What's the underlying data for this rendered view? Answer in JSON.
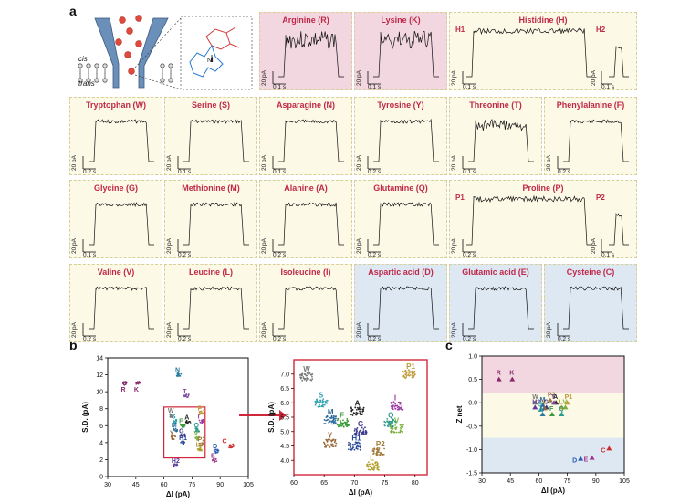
{
  "panels": {
    "a": "a",
    "b": "b",
    "c": "c"
  },
  "schematic": {
    "cis": "cis",
    "trans": "trans",
    "ni": "Ni"
  },
  "tiles": [
    {
      "name": "Arginine (R)",
      "bg": "#f2d7e0",
      "scale_y": "20 pA",
      "scale_x": "0.1 s",
      "sub": []
    },
    {
      "name": "Lysine (K)",
      "bg": "#f2d7e0",
      "scale_y": "20 pA",
      "scale_x": "0.1 s",
      "sub": []
    },
    {
      "name": "Histidine (H)",
      "bg": "#fcf9e6",
      "scale_y": "20 pA",
      "scale_x": "0.1 s",
      "sub": [
        "H1",
        "H2"
      ],
      "scale_y2": "20 pA",
      "scale_x2": "0.1 s"
    },
    {
      "name": "Tryptophan (W)",
      "bg": "#fcf9e6",
      "scale_y": "20 pA",
      "scale_x": "0.2 s",
      "sub": []
    },
    {
      "name": "Serine (S)",
      "bg": "#fcf9e6",
      "scale_y": "20 pA",
      "scale_x": "0.1 s",
      "sub": []
    },
    {
      "name": "Asparagine (N)",
      "bg": "#fcf9e6",
      "scale_y": "20 pA",
      "scale_x": "0.1 s",
      "sub": []
    },
    {
      "name": "Tyrosine (Y)",
      "bg": "#fcf9e6",
      "scale_y": "20 pA",
      "scale_x": "0.2 s",
      "sub": []
    },
    {
      "name": "Threonine (T)",
      "bg": "#fcf9e6",
      "scale_y": "20 pA",
      "scale_x": "0.1 s",
      "sub": []
    },
    {
      "name": "Phenylalanine (F)",
      "bg": "#fcf9e6",
      "scale_y": "20 pA",
      "scale_x": "0.2 s",
      "sub": []
    },
    {
      "name": "Glycine (G)",
      "bg": "#fcf9e6",
      "scale_y": "20 pA",
      "scale_x": "0.1 s",
      "sub": []
    },
    {
      "name": "Methionine (M)",
      "bg": "#fcf9e6",
      "scale_y": "20 pA",
      "scale_x": "0.2 s",
      "sub": []
    },
    {
      "name": "Alanine (A)",
      "bg": "#fcf9e6",
      "scale_y": "20 pA",
      "scale_x": "0.2 s",
      "sub": []
    },
    {
      "name": "Glutamine (Q)",
      "bg": "#fcf9e6",
      "scale_y": "20 pA",
      "scale_x": "0.2 s",
      "sub": []
    },
    {
      "name": "Proline (P)",
      "bg": "#fcf9e6",
      "scale_y": "20 pA",
      "scale_x": "0.2 s",
      "sub": [
        "P1",
        "P2"
      ],
      "scale_y2": "20 pA",
      "scale_x2": "0.1 s"
    },
    {
      "name": "Valine (V)",
      "bg": "#fcf9e6",
      "scale_y": "20 pA",
      "scale_x": "0.2 s",
      "sub": []
    },
    {
      "name": "Leucine (L)",
      "bg": "#fcf9e6",
      "scale_y": "20 pA",
      "scale_x": "0.2 s",
      "sub": []
    },
    {
      "name": "Isoleucine (I)",
      "bg": "#fcf9e6",
      "scale_y": "20 pA",
      "scale_x": "0.2 s",
      "sub": []
    },
    {
      "name": "Aspartic acid (D)",
      "bg": "#dde8f3",
      "scale_y": "20 pA",
      "scale_x": "0.2 s",
      "sub": []
    },
    {
      "name": "Glutamic acid (E)",
      "bg": "#dde8f3",
      "scale_y": "20 pA",
      "scale_x": "0.2 s",
      "sub": []
    },
    {
      "name": "Cysteine (C)",
      "bg": "#dde8f3",
      "scale_y": "20 pA",
      "scale_x": "0.2 s",
      "sub": []
    }
  ],
  "chart_data": [
    {
      "type": "scatter",
      "panel": "b-left",
      "xlabel": "ΔI (pA)",
      "ylabel": "S.D. (pA)",
      "xlim": [
        30,
        105
      ],
      "ylim": [
        0,
        14
      ],
      "xticks": [
        "30",
        "45",
        "60",
        "75",
        "90",
        "105"
      ],
      "yticks": [
        "0",
        "2",
        "4",
        "6",
        "8",
        "10",
        "12",
        "14"
      ],
      "clusters": [
        {
          "label": "R",
          "x": 39,
          "y": 11.0,
          "color": "#8a2a6a"
        },
        {
          "label": "K",
          "x": 46,
          "y": 11.0,
          "color": "#8a2a6a"
        },
        {
          "label": "N",
          "x": 68,
          "y": 12.0,
          "color": "#2a7a9a"
        },
        {
          "label": "T",
          "x": 72,
          "y": 9.5,
          "color": "#7a4aa0"
        },
        {
          "label": "W",
          "x": 64,
          "y": 7.2,
          "color": "#7a7a7a"
        },
        {
          "label": "S",
          "x": 66,
          "y": 6.5,
          "color": "#2aa0b0"
        },
        {
          "label": "P1",
          "x": 80,
          "y": 7.5,
          "color": "#c09a3a"
        },
        {
          "label": "I",
          "x": 80,
          "y": 6.5,
          "color": "#9a3aa0"
        },
        {
          "label": "A",
          "x": 73,
          "y": 6.4,
          "color": "#222222"
        },
        {
          "label": "F",
          "x": 70,
          "y": 6.0,
          "color": "#3a9a3a"
        },
        {
          "label": "M",
          "x": 66,
          "y": 5.5,
          "color": "#2a6a9a"
        },
        {
          "label": "Q",
          "x": 78,
          "y": 5.5,
          "color": "#2a9a8a"
        },
        {
          "label": "Y",
          "x": 65,
          "y": 4.6,
          "color": "#9a6a3a"
        },
        {
          "label": "G",
          "x": 70,
          "y": 4.8,
          "color": "#3a3a8a"
        },
        {
          "label": "V",
          "x": 78,
          "y": 4.5,
          "color": "#7ab03a"
        },
        {
          "label": "H1",
          "x": 70,
          "y": 4.0,
          "color": "#2a4a9a"
        },
        {
          "label": "P2",
          "x": 80,
          "y": 3.8,
          "color": "#a07a3a"
        },
        {
          "label": "L",
          "x": 79,
          "y": 3.2,
          "color": "#b0a02a"
        },
        {
          "label": "D",
          "x": 88,
          "y": 3.0,
          "color": "#2a5ab0"
        },
        {
          "label": "E",
          "x": 87,
          "y": 1.9,
          "color": "#a03a8a"
        },
        {
          "label": "C",
          "x": 96,
          "y": 3.6,
          "color": "#d02a2a"
        },
        {
          "label": "H2",
          "x": 66,
          "y": 1.3,
          "color": "#5a3a9a"
        }
      ]
    },
    {
      "type": "scatter",
      "panel": "b-right",
      "xlabel": "ΔI (pA)",
      "ylabel": "S.D. (pA)",
      "xlim": [
        60,
        82
      ],
      "ylim": [
        3.5,
        7.5
      ],
      "xticks": [
        "60",
        "65",
        "70",
        "75",
        "80"
      ],
      "yticks": [
        "4.0",
        "4.5",
        "5.0",
        "5.5",
        "6.0",
        "6.5",
        "7.0"
      ],
      "clusters": [
        {
          "label": "W",
          "x": 62,
          "y": 6.9,
          "color": "#7a7a7a"
        },
        {
          "label": "P1",
          "x": 79,
          "y": 7.0,
          "color": "#c09a3a"
        },
        {
          "label": "S",
          "x": 64.5,
          "y": 6.0,
          "color": "#2aa0b0"
        },
        {
          "label": "A",
          "x": 70.5,
          "y": 5.7,
          "color": "#222222"
        },
        {
          "label": "I",
          "x": 77,
          "y": 5.9,
          "color": "#9a3aa0"
        },
        {
          "label": "M",
          "x": 66,
          "y": 5.4,
          "color": "#2a6a9a"
        },
        {
          "label": "F",
          "x": 68,
          "y": 5.3,
          "color": "#3a9a3a"
        },
        {
          "label": "Q",
          "x": 76,
          "y": 5.3,
          "color": "#2a9a8a"
        },
        {
          "label": "V",
          "x": 77,
          "y": 5.1,
          "color": "#7ab03a"
        },
        {
          "label": "G",
          "x": 71,
          "y": 5.0,
          "color": "#3a3a8a"
        },
        {
          "label": "Y",
          "x": 66,
          "y": 4.6,
          "color": "#9a6a3a"
        },
        {
          "label": "H1",
          "x": 70,
          "y": 4.5,
          "color": "#2a4a9a"
        },
        {
          "label": "P2",
          "x": 74,
          "y": 4.3,
          "color": "#a07a3a"
        },
        {
          "label": "L",
          "x": 73,
          "y": 3.8,
          "color": "#b0a02a"
        }
      ]
    },
    {
      "type": "scatter",
      "panel": "c",
      "xlabel": "ΔI (pA)",
      "ylabel": "Z net",
      "xlim": [
        30,
        105
      ],
      "ylim": [
        -1.5,
        1.0
      ],
      "xticks": [
        "30",
        "45",
        "60",
        "75",
        "90",
        "105"
      ],
      "yticks": [
        "-1.5",
        "-1.0",
        "-0.5",
        "0.0",
        "0.5",
        "1.0"
      ],
      "points": [
        {
          "label": "R",
          "x": 39,
          "y": 0.5,
          "color": "#8a2a6a"
        },
        {
          "label": "K",
          "x": 46,
          "y": 0.5,
          "color": "#8a2a6a"
        },
        {
          "label": "P2",
          "x": 66,
          "y": 0.05,
          "color": "#a07a3a"
        },
        {
          "label": "P1",
          "x": 75,
          "y": 0.0,
          "color": "#c09a3a"
        },
        {
          "label": "W",
          "x": 58,
          "y": 0.0,
          "color": "#7a7a7a"
        },
        {
          "label": "A",
          "x": 69,
          "y": 0.0,
          "color": "#222222"
        },
        {
          "label": "T",
          "x": 68,
          "y": 0.0,
          "color": "#7a4aa0"
        },
        {
          "label": "H2",
          "x": 58,
          "y": -0.1,
          "color": "#5a3a9a"
        },
        {
          "label": "M",
          "x": 62,
          "y": -0.05,
          "color": "#2a6a9a"
        },
        {
          "label": "S",
          "x": 61,
          "y": -0.15,
          "color": "#2aa0b0"
        },
        {
          "label": "G",
          "x": 64,
          "y": -0.1,
          "color": "#3a3a8a"
        },
        {
          "label": "Y",
          "x": 63,
          "y": -0.12,
          "color": "#9a6a3a"
        },
        {
          "label": "L",
          "x": 72,
          "y": -0.1,
          "color": "#b0a02a"
        },
        {
          "label": "V",
          "x": 74,
          "y": -0.1,
          "color": "#7ab03a"
        },
        {
          "label": "N",
          "x": 62,
          "y": -0.25,
          "color": "#2a7a9a"
        },
        {
          "label": "F",
          "x": 67,
          "y": -0.25,
          "color": "#3a9a3a"
        },
        {
          "label": "Q",
          "x": 72,
          "y": -0.25,
          "color": "#2a9a8a"
        },
        {
          "label": "D",
          "x": 82,
          "y": -1.2,
          "color": "#2a5ab0"
        },
        {
          "label": "E",
          "x": 88,
          "y": -1.18,
          "color": "#a03a8a"
        },
        {
          "label": "C",
          "x": 97,
          "y": -0.98,
          "color": "#d02a2a"
        }
      ],
      "bands": [
        {
          "from": 0.2,
          "to": 1.0,
          "color": "#f2d7e0"
        },
        {
          "from": -0.75,
          "to": 0.2,
          "color": "#fcf9e6"
        },
        {
          "from": -1.5,
          "to": -0.75,
          "color": "#dde8f3"
        }
      ]
    }
  ]
}
